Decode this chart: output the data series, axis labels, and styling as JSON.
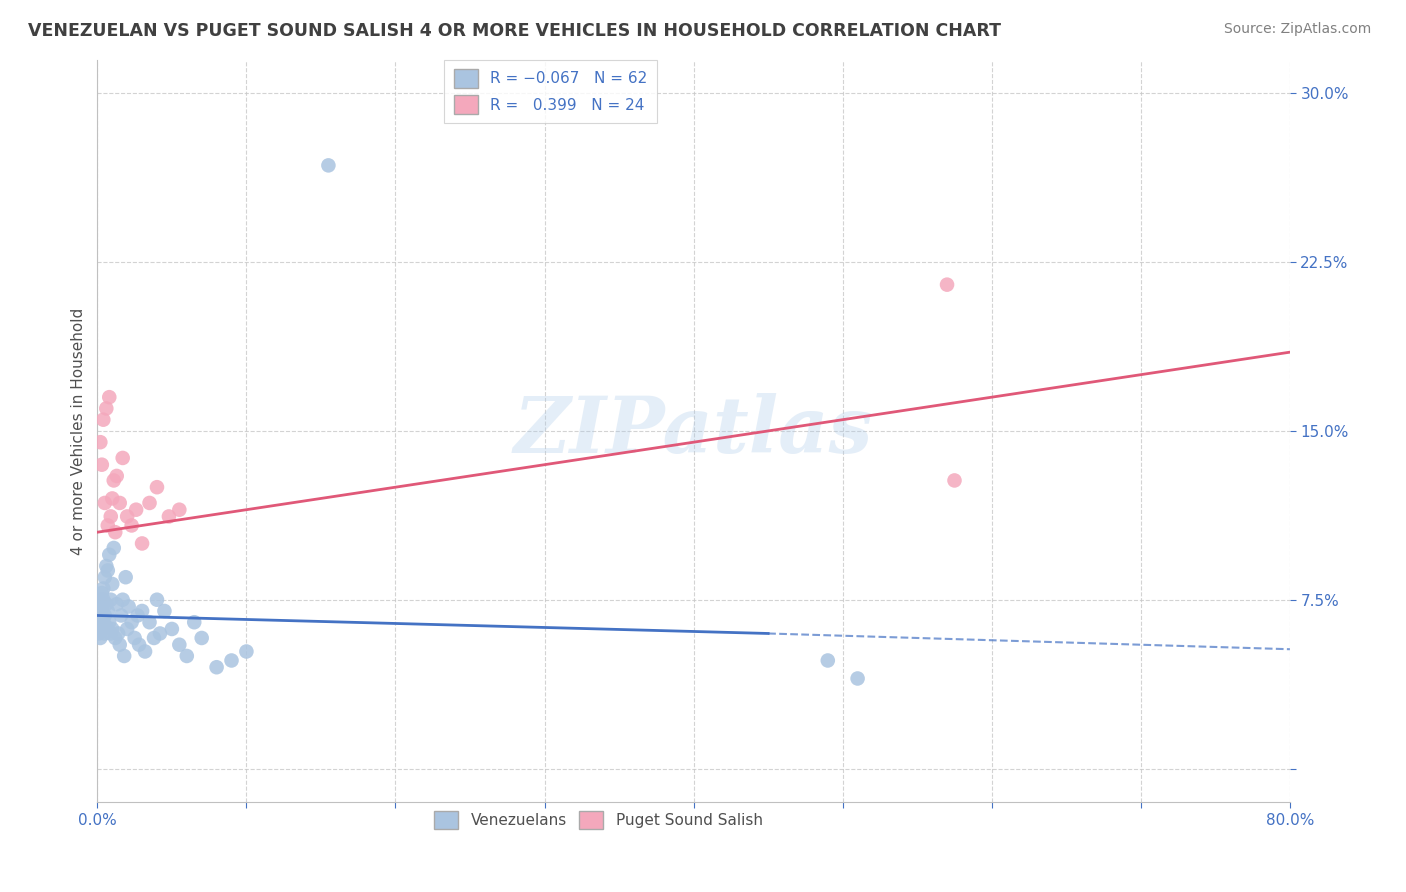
{
  "title": "VENEZUELAN VS PUGET SOUND SALISH 4 OR MORE VEHICLES IN HOUSEHOLD CORRELATION CHART",
  "source": "Source: ZipAtlas.com",
  "ylabel": "4 or more Vehicles in Household",
  "xlim": [
    0.0,
    0.8
  ],
  "ylim": [
    -0.015,
    0.315
  ],
  "blue_color": "#aac4e0",
  "pink_color": "#f4a8bc",
  "blue_line_color": "#4472c4",
  "pink_line_color": "#e05878",
  "watermark": "ZIPatlas",
  "bg_color": "#ffffff",
  "grid_color": "#c8c8c8",
  "title_color": "#404040",
  "axis_color": "#4472c4",
  "blue_line_x0": 0.0,
  "blue_line_y0": 0.068,
  "blue_line_x_solid_end": 0.45,
  "blue_line_y_solid_end": 0.06,
  "blue_line_x1": 0.8,
  "blue_line_y1": 0.053,
  "pink_line_x0": 0.0,
  "pink_line_y0": 0.105,
  "pink_line_x1": 0.8,
  "pink_line_y1": 0.185,
  "ven_x": [
    0.001,
    0.001,
    0.001,
    0.001,
    0.002,
    0.002,
    0.002,
    0.002,
    0.002,
    0.003,
    0.003,
    0.003,
    0.004,
    0.004,
    0.004,
    0.005,
    0.005,
    0.005,
    0.006,
    0.006,
    0.006,
    0.007,
    0.007,
    0.008,
    0.008,
    0.009,
    0.009,
    0.01,
    0.01,
    0.011,
    0.012,
    0.013,
    0.014,
    0.015,
    0.016,
    0.017,
    0.018,
    0.019,
    0.02,
    0.021,
    0.023,
    0.025,
    0.027,
    0.028,
    0.03,
    0.032,
    0.035,
    0.038,
    0.04,
    0.042,
    0.045,
    0.05,
    0.055,
    0.06,
    0.065,
    0.07,
    0.08,
    0.09,
    0.1,
    0.155,
    0.49,
    0.51
  ],
  "ven_y": [
    0.06,
    0.065,
    0.07,
    0.072,
    0.062,
    0.068,
    0.075,
    0.058,
    0.072,
    0.064,
    0.071,
    0.078,
    0.066,
    0.075,
    0.08,
    0.06,
    0.068,
    0.085,
    0.063,
    0.073,
    0.09,
    0.07,
    0.088,
    0.065,
    0.095,
    0.06,
    0.075,
    0.062,
    0.082,
    0.098,
    0.058,
    0.073,
    0.06,
    0.055,
    0.068,
    0.075,
    0.05,
    0.085,
    0.062,
    0.072,
    0.065,
    0.058,
    0.068,
    0.055,
    0.07,
    0.052,
    0.065,
    0.058,
    0.075,
    0.06,
    0.07,
    0.062,
    0.055,
    0.05,
    0.065,
    0.058,
    0.045,
    0.048,
    0.052,
    0.268,
    0.048,
    0.04
  ],
  "pug_x": [
    0.002,
    0.003,
    0.004,
    0.005,
    0.006,
    0.007,
    0.008,
    0.009,
    0.01,
    0.011,
    0.012,
    0.013,
    0.015,
    0.017,
    0.02,
    0.023,
    0.026,
    0.03,
    0.035,
    0.04,
    0.048,
    0.055,
    0.57,
    0.575
  ],
  "pug_y": [
    0.145,
    0.135,
    0.155,
    0.118,
    0.16,
    0.108,
    0.165,
    0.112,
    0.12,
    0.128,
    0.105,
    0.13,
    0.118,
    0.138,
    0.112,
    0.108,
    0.115,
    0.1,
    0.118,
    0.125,
    0.112,
    0.115,
    0.215,
    0.128
  ]
}
